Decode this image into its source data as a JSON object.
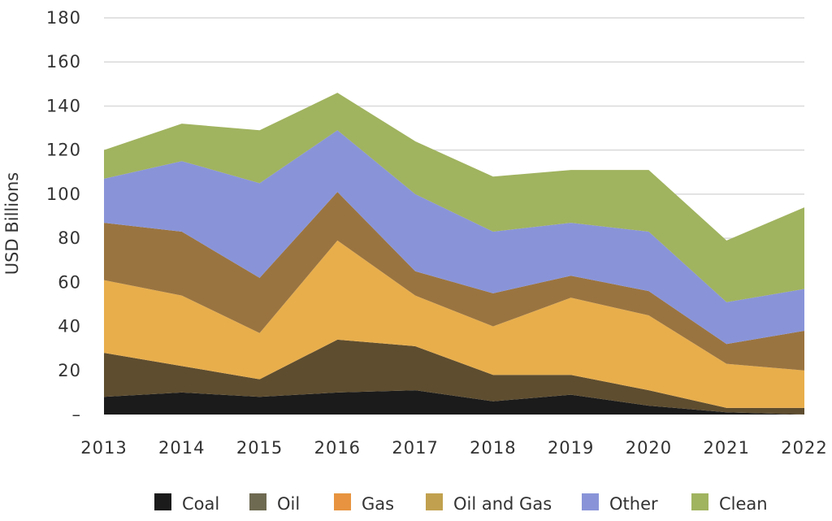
{
  "chart_data": {
    "type": "area",
    "stacked": true,
    "title": "",
    "xlabel": "",
    "ylabel": "USD Billions",
    "ylim": [
      0,
      180
    ],
    "yticks": [
      "–",
      "20",
      "40",
      "60",
      "80",
      "100",
      "120",
      "140",
      "160",
      "180"
    ],
    "grid": true,
    "legend_position": "bottom",
    "x": [
      "2013",
      "2014",
      "2015",
      "2016",
      "2017",
      "2018",
      "2019",
      "2020",
      "2021",
      "2022"
    ],
    "series": [
      {
        "name": "Coal",
        "color": "#1b1b1b",
        "values": [
          8,
          10,
          8,
          10,
          11,
          6,
          9,
          4,
          1,
          0
        ]
      },
      {
        "name": "Oil",
        "color": "#5e4d2f",
        "values": [
          20,
          12,
          8,
          24,
          20,
          12,
          9,
          7,
          2,
          3
        ]
      },
      {
        "name": "Gas",
        "color": "#e8ae4c",
        "values": [
          33,
          32,
          21,
          45,
          23,
          22,
          35,
          34,
          20,
          17
        ]
      },
      {
        "name": "Oil and Gas",
        "color": "#9a7440",
        "values": [
          26,
          29,
          25,
          22,
          11,
          15,
          10,
          11,
          9,
          18
        ]
      },
      {
        "name": "Other",
        "color": "#8994d8",
        "values": [
          20,
          32,
          43,
          28,
          35,
          28,
          24,
          27,
          19,
          19
        ]
      },
      {
        "name": "Clean",
        "color": "#a0b35f",
        "values": [
          13,
          17,
          24,
          17,
          24,
          25,
          24,
          28,
          28,
          37
        ]
      }
    ],
    "legend_swatch_colors": [
      "#1b1b1b",
      "#6e6a52",
      "#e7933f",
      "#c1a14f",
      "#8994d8",
      "#a0b35f"
    ]
  }
}
